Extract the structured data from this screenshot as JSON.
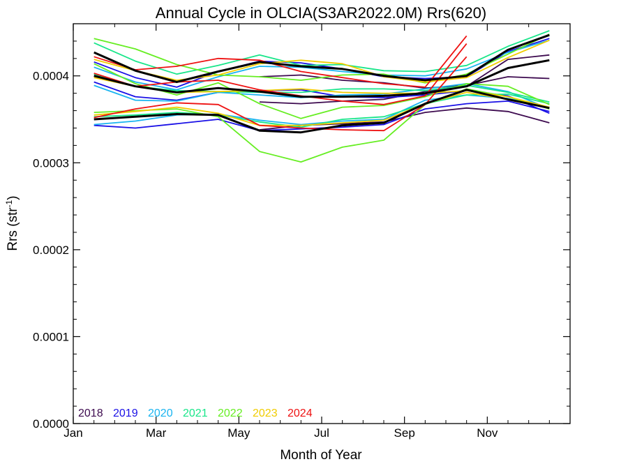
{
  "chart_data": {
    "type": "line",
    "title": "Annual Cycle in OLCIA(S3AR2022.0M) Rrs(620)",
    "xlabel": "Month of Year",
    "ylabel_main": "Rrs (str",
    "ylabel_sup": "-1",
    "ylabel_close": ")",
    "xlim": [
      1,
      13
    ],
    "ylim": [
      0,
      0.00046
    ],
    "x_ticks": [
      {
        "value": 1,
        "label": "Jan"
      },
      {
        "value": 3,
        "label": "Mar"
      },
      {
        "value": 5,
        "label": "May"
      },
      {
        "value": 7,
        "label": "Jul"
      },
      {
        "value": 9,
        "label": "Sep"
      },
      {
        "value": 11,
        "label": "Nov"
      }
    ],
    "y_ticks": [
      {
        "value": 0,
        "label": "0.0000"
      },
      {
        "value": 0.0001,
        "label": "0.0001"
      },
      {
        "value": 0.0002,
        "label": "0.0002"
      },
      {
        "value": 0.0003,
        "label": "0.0003"
      },
      {
        "value": 0.0004,
        "label": "0.0004"
      }
    ],
    "legend": [
      {
        "label": "2018",
        "color": "#3d0a4f"
      },
      {
        "label": "2019",
        "color": "#1a10e6"
      },
      {
        "label": "2020",
        "color": "#19b4f0"
      },
      {
        "label": "2021",
        "color": "#19e68a"
      },
      {
        "label": "2022",
        "color": "#66ee22"
      },
      {
        "label": "2023",
        "color": "#f0cc00"
      },
      {
        "label": "2024",
        "color": "#ee1111"
      }
    ],
    "series": [
      {
        "color": "#3d0a4f",
        "x": [
          5.5,
          6.5,
          7.5,
          8.5,
          9.5,
          10.5,
          11.5,
          12.5
        ],
        "values": [
          0.000399,
          0.000401,
          0.000395,
          0.000392,
          0.000386,
          0.000389,
          0.000399,
          0.000397
        ]
      },
      {
        "color": "#3d0a4f",
        "x": [
          5.5,
          6.5,
          7.5,
          8.5,
          9.5,
          10.5,
          11.5,
          12.5
        ],
        "values": [
          0.00037,
          0.000368,
          0.000371,
          0.000373,
          0.000382,
          0.000388,
          0.000419,
          0.000424
        ]
      },
      {
        "color": "#3d0a4f",
        "x": [
          5.5,
          6.5,
          7.5,
          8.5,
          9.5,
          10.5,
          11.5,
          12.5
        ],
        "values": [
          0.000338,
          0.000343,
          0.000345,
          0.000347,
          0.000358,
          0.000363,
          0.000359,
          0.000346
        ]
      },
      {
        "color": "#1a10e6",
        "x": [
          1.5,
          2.5,
          3.5,
          4.5,
          5.5,
          6.5,
          7.5,
          8.5,
          9.5,
          10.5,
          11.5,
          12.5
        ],
        "values": [
          0.000393,
          0.000376,
          0.000372,
          0.000381,
          0.000383,
          0.000384,
          0.000376,
          0.000375,
          0.000378,
          0.000383,
          0.000377,
          0.000357
        ]
      },
      {
        "color": "#1a10e6",
        "x": [
          1.5,
          2.5,
          3.5,
          4.5,
          5.5,
          6.5,
          7.5,
          8.5,
          9.5,
          10.5,
          11.5,
          12.5
        ],
        "values": [
          0.000343,
          0.00034,
          0.000345,
          0.00035,
          0.000337,
          0.000339,
          0.000341,
          0.000344,
          0.000362,
          0.000368,
          0.000371,
          0.000359
        ]
      },
      {
        "color": "#1a10e6",
        "x": [
          1.5,
          2.5,
          3.5,
          4.5,
          5.5,
          6.5,
          7.5,
          8.5,
          9.5,
          10.5,
          11.5,
          12.5
        ],
        "values": [
          0.000416,
          0.000398,
          0.000387,
          0.000405,
          0.000417,
          0.000415,
          0.000408,
          0.000399,
          0.000397,
          0.000399,
          0.000428,
          0.000443
        ]
      },
      {
        "color": "#19b4f0",
        "x": [
          1.5,
          2.5,
          3.5,
          4.5,
          5.5,
          6.5,
          7.5,
          8.5,
          9.5,
          10.5,
          11.5,
          12.5
        ],
        "values": [
          0.000389,
          0.000372,
          0.000371,
          0.000381,
          0.000378,
          0.000375,
          0.000378,
          0.000379,
          0.000385,
          0.000391,
          0.000382,
          0.000362
        ]
      },
      {
        "color": "#19b4f0",
        "x": [
          1.5,
          2.5,
          3.5,
          4.5,
          5.5,
          6.5,
          7.5,
          8.5,
          9.5,
          10.5,
          11.5,
          12.5
        ],
        "values": [
          0.000344,
          0.000348,
          0.000355,
          0.000356,
          0.000349,
          0.000344,
          0.000348,
          0.00035,
          0.000372,
          0.000378,
          0.000374,
          0.000364
        ]
      },
      {
        "color": "#19b4f0",
        "x": [
          1.5,
          2.5,
          3.5,
          4.5,
          5.5,
          6.5,
          7.5,
          8.5,
          9.5,
          10.5,
          11.5,
          12.5
        ],
        "values": [
          0.00041,
          0.000393,
          0.000384,
          0.000399,
          0.000411,
          0.00041,
          0.000405,
          0.000401,
          0.0004,
          0.000408,
          0.000427,
          0.000441
        ]
      },
      {
        "color": "#19e68a",
        "x": [
          1.5,
          2.5,
          3.5,
          4.5,
          5.5,
          6.5,
          7.5,
          8.5,
          9.5,
          10.5,
          11.5,
          12.5
        ],
        "values": [
          0.000438,
          0.000417,
          0.000402,
          0.000412,
          0.000424,
          0.000412,
          0.000413,
          0.000406,
          0.000405,
          0.000412,
          0.000434,
          0.000452
        ]
      },
      {
        "color": "#19e68a",
        "x": [
          1.5,
          2.5,
          3.5,
          4.5,
          5.5,
          6.5,
          7.5,
          8.5,
          9.5,
          10.5,
          11.5,
          12.5
        ],
        "values": [
          0.000402,
          0.000388,
          0.000383,
          0.000382,
          0.000381,
          0.000381,
          0.000385,
          0.000385,
          0.000383,
          0.000389,
          0.000381,
          0.00037
        ]
      },
      {
        "color": "#19e68a",
        "x": [
          1.5,
          2.5,
          3.5,
          4.5,
          5.5,
          6.5,
          7.5,
          8.5,
          9.5,
          10.5,
          11.5,
          12.5
        ],
        "values": [
          0.000353,
          0.000355,
          0.000358,
          0.000355,
          0.000347,
          0.000341,
          0.00035,
          0.000353,
          0.000368,
          0.000378,
          0.000379,
          0.000368
        ]
      },
      {
        "color": "#66ee22",
        "x": [
          1.5,
          2.5,
          3.5,
          4.5,
          5.5,
          6.5,
          7.5,
          8.5,
          9.5,
          10.5,
          11.5,
          12.5
        ],
        "values": [
          0.000443,
          0.000431,
          0.000413,
          0.000401,
          0.000399,
          0.000395,
          0.000401,
          0.000402,
          0.000392,
          0.000402,
          0.000425,
          0.000448
        ]
      },
      {
        "color": "#66ee22",
        "x": [
          1.5,
          2.5,
          3.5,
          4.5,
          5.5,
          6.5,
          7.5,
          8.5,
          9.5,
          10.5,
          11.5,
          12.5
        ],
        "values": [
          0.000414,
          0.000391,
          0.000378,
          0.000392,
          0.000368,
          0.000351,
          0.000364,
          0.000366,
          0.000376,
          0.000391,
          0.000388,
          0.000367
        ]
      },
      {
        "color": "#66ee22",
        "x": [
          1.5,
          2.5,
          3.5,
          4.5,
          5.5,
          6.5,
          7.5,
          8.5,
          9.5,
          10.5,
          11.5,
          12.5
        ],
        "values": [
          0.000358,
          0.00036,
          0.000362,
          0.000353,
          0.000313,
          0.000301,
          0.000318,
          0.000326,
          0.000367,
          0.000385,
          0.000376,
          0.000362
        ]
      },
      {
        "color": "#f0cc00",
        "x": [
          1.5,
          2.5,
          3.5,
          4.5,
          5.5,
          6.5,
          7.5,
          8.5,
          9.5,
          10.5,
          11.5,
          12.5
        ],
        "values": [
          0.000419,
          0.000406,
          0.000395,
          0.000401,
          0.000414,
          0.000418,
          0.000414,
          0.000399,
          0.000393,
          0.000398,
          0.000421,
          0.000441
        ]
      },
      {
        "color": "#f0cc00",
        "x": [
          1.5,
          2.5,
          3.5,
          4.5,
          5.5,
          6.5,
          7.5,
          8.5,
          9.5,
          10.5,
          11.5,
          12.5
        ],
        "values": [
          0.000398,
          0.000388,
          0.000381,
          0.000382,
          0.000383,
          0.000385,
          0.000381,
          0.00038,
          0.00038,
          0.000383,
          0.000376,
          0.000364
        ]
      },
      {
        "color": "#f0cc00",
        "x": [
          1.5,
          2.5,
          3.5,
          4.5,
          5.5,
          6.5,
          7.5,
          8.5,
          9.5,
          10.5,
          11.5,
          12.5
        ],
        "values": [
          0.000355,
          0.000359,
          0.000364,
          0.000357,
          0.000343,
          0.000343,
          0.000346,
          0.000349,
          0.000368,
          0.000381,
          0.000373,
          0.000363
        ]
      },
      {
        "color": "#ee1111",
        "x": [
          1.5,
          2.5,
          3.5,
          4.5,
          5.5,
          6.5,
          7.5,
          8.5,
          9.5,
          10.5
        ],
        "values": [
          0.000422,
          0.000407,
          0.000411,
          0.00042,
          0.000418,
          0.000405,
          0.000398,
          0.000391,
          0.000387,
          0.000446
        ]
      },
      {
        "color": "#ee1111",
        "x": [
          1.5,
          2.5,
          3.5,
          4.5,
          5.5,
          6.5,
          7.5,
          8.5,
          9.5,
          10.5
        ],
        "values": [
          0.000403,
          0.000388,
          0.000393,
          0.000395,
          0.000384,
          0.000377,
          0.000371,
          0.000367,
          0.000377,
          0.000437
        ]
      },
      {
        "color": "#ee1111",
        "x": [
          1.5,
          2.5,
          3.5,
          4.5,
          5.5,
          6.5,
          7.5,
          8.5,
          9.5,
          10.5
        ],
        "values": [
          0.000352,
          0.000362,
          0.000369,
          0.000367,
          0.000343,
          0.00034,
          0.000338,
          0.000337,
          0.000367,
          0.000422
        ]
      },
      {
        "color": "#000000",
        "bold": true,
        "x": [
          1.5,
          2.5,
          3.5,
          4.5,
          5.5,
          6.5,
          7.5,
          8.5,
          9.5,
          10.5,
          11.5,
          12.5
        ],
        "values": [
          0.000427,
          0.000406,
          0.000393,
          0.000405,
          0.000416,
          0.000411,
          0.000408,
          0.0004,
          0.000395,
          0.0004,
          0.00043,
          0.000447
        ]
      },
      {
        "color": "#000000",
        "bold": true,
        "x": [
          1.5,
          2.5,
          3.5,
          4.5,
          5.5,
          6.5,
          7.5,
          8.5,
          9.5,
          10.5,
          11.5,
          12.5
        ],
        "values": [
          0.0004,
          0.000388,
          0.000381,
          0.000386,
          0.000382,
          0.000376,
          0.000376,
          0.000377,
          0.00038,
          0.000388,
          0.000409,
          0.000418
        ]
      },
      {
        "color": "#000000",
        "bold": true,
        "x": [
          1.5,
          2.5,
          3.5,
          4.5,
          5.5,
          6.5,
          7.5,
          8.5,
          9.5,
          10.5,
          11.5,
          12.5
        ],
        "values": [
          0.00035,
          0.000353,
          0.000356,
          0.000355,
          0.000337,
          0.000335,
          0.000343,
          0.000346,
          0.000368,
          0.000384,
          0.000373,
          0.000363
        ]
      }
    ]
  }
}
